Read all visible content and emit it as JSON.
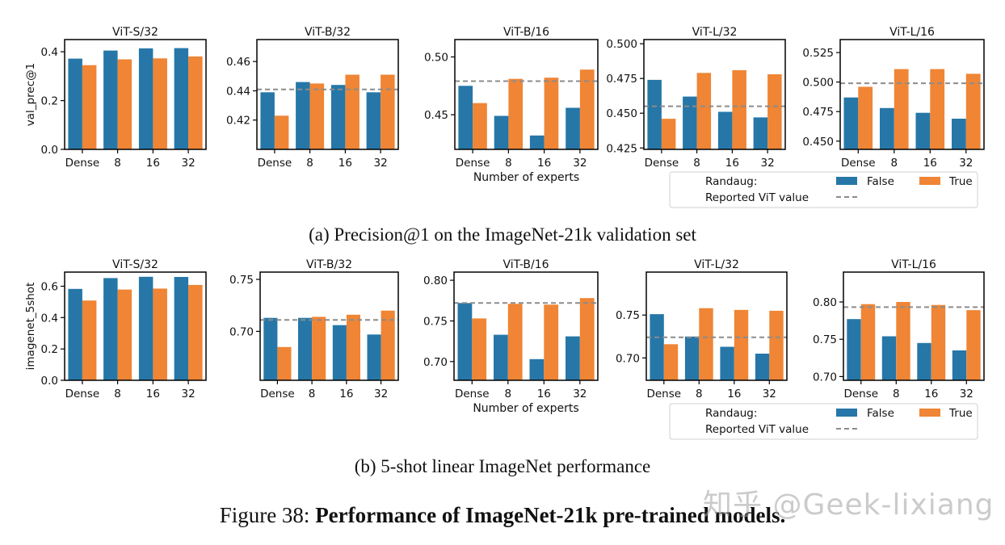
{
  "colors": {
    "false": "#2677a8",
    "true": "#ef8535",
    "ref": "#8c8c8c",
    "axis": "#000000"
  },
  "captions": {
    "a": "(a) Precision@1 on the ImageNet-21k validation set",
    "b": "(b) 5-shot linear ImageNet performance",
    "figure_label": "Figure 38: ",
    "figure_title": "Performance of ImageNet-21k pre-trained models."
  },
  "watermark": "知乎 @Geek-lixiang",
  "legend": {
    "title": "Randaug:",
    "false_label": "False",
    "true_label": "True",
    "ref_label": "Reported ViT value"
  },
  "chart_data": [
    {
      "row": "a",
      "type": "bar",
      "title": "ViT-S/32",
      "categories": [
        "Dense",
        "8",
        "16",
        "32"
      ],
      "ylabel": "val_prec@1",
      "xlabel": "",
      "ylim": [
        0,
        0.45
      ],
      "yticks": [
        0.0,
        0.2,
        0.4
      ],
      "ytick_labels": [
        "0.0",
        "0.2",
        "0.4"
      ],
      "series": [
        {
          "name": "False",
          "values": [
            0.372,
            0.405,
            0.414,
            0.415
          ]
        },
        {
          "name": "True",
          "values": [
            0.345,
            0.369,
            0.373,
            0.381
          ]
        }
      ],
      "reference": null
    },
    {
      "row": "a",
      "type": "bar",
      "title": "ViT-B/32",
      "categories": [
        "Dense",
        "8",
        "16",
        "32"
      ],
      "ylabel": "",
      "xlabel": "",
      "ylim": [
        0.4,
        0.475
      ],
      "yticks": [
        0.42,
        0.44,
        0.46
      ],
      "ytick_labels": [
        "0.42",
        "0.44",
        "0.46"
      ],
      "series": [
        {
          "name": "False",
          "values": [
            0.439,
            0.446,
            0.444,
            0.439
          ]
        },
        {
          "name": "True",
          "values": [
            0.423,
            0.445,
            0.451,
            0.451
          ]
        }
      ],
      "reference": 0.441
    },
    {
      "row": "a",
      "type": "bar",
      "title": "ViT-B/16",
      "categories": [
        "Dense",
        "8",
        "16",
        "32"
      ],
      "ylabel": "",
      "xlabel": "Number of experts",
      "ylim": [
        0.42,
        0.515
      ],
      "yticks": [
        0.45,
        0.5
      ],
      "ytick_labels": [
        "0.45",
        "0.50"
      ],
      "series": [
        {
          "name": "False",
          "values": [
            0.475,
            0.449,
            0.432,
            0.456
          ]
        },
        {
          "name": "True",
          "values": [
            0.46,
            0.481,
            0.482,
            0.489
          ]
        }
      ],
      "reference": 0.479
    },
    {
      "row": "a",
      "type": "bar",
      "title": "ViT-L/32",
      "categories": [
        "Dense",
        "8",
        "16",
        "32"
      ],
      "ylabel": "",
      "xlabel": "",
      "ylim": [
        0.424,
        0.503
      ],
      "yticks": [
        0.425,
        0.45,
        0.475,
        0.5
      ],
      "ytick_labels": [
        "0.425",
        "0.450",
        "0.475",
        "0.500"
      ],
      "series": [
        {
          "name": "False",
          "values": [
            0.474,
            0.462,
            0.451,
            0.447
          ]
        },
        {
          "name": "True",
          "values": [
            0.446,
            0.479,
            0.481,
            0.478
          ]
        }
      ],
      "reference": 0.455
    },
    {
      "row": "a",
      "type": "bar",
      "title": "ViT-L/16",
      "categories": [
        "Dense",
        "8",
        "16",
        "32"
      ],
      "ylabel": "",
      "xlabel": "",
      "ylim": [
        0.443,
        0.536
      ],
      "yticks": [
        0.45,
        0.475,
        0.5,
        0.525
      ],
      "ytick_labels": [
        "0.450",
        "0.475",
        "0.500",
        "0.525"
      ],
      "series": [
        {
          "name": "False",
          "values": [
            0.487,
            0.478,
            0.474,
            0.469
          ]
        },
        {
          "name": "True",
          "values": [
            0.496,
            0.511,
            0.511,
            0.507
          ]
        }
      ],
      "reference": 0.499
    },
    {
      "row": "b",
      "type": "bar",
      "title": "ViT-S/32",
      "categories": [
        "Dense",
        "8",
        "16",
        "32"
      ],
      "ylabel": "imagenet_5shot",
      "xlabel": "",
      "ylim": [
        0,
        0.69
      ],
      "yticks": [
        0.0,
        0.2,
        0.4,
        0.6
      ],
      "ytick_labels": [
        "0.0",
        "0.2",
        "0.4",
        "0.6"
      ],
      "series": [
        {
          "name": "False",
          "values": [
            0.583,
            0.652,
            0.66,
            0.659
          ]
        },
        {
          "name": "True",
          "values": [
            0.509,
            0.579,
            0.585,
            0.608
          ]
        }
      ],
      "reference": null
    },
    {
      "row": "b",
      "type": "bar",
      "title": "ViT-B/32",
      "categories": [
        "Dense",
        "8",
        "16",
        "32"
      ],
      "ylabel": "",
      "xlabel": "",
      "ylim": [
        0.653,
        0.757
      ],
      "yticks": [
        0.7,
        0.75
      ],
      "ytick_labels": [
        "0.70",
        "0.75"
      ],
      "series": [
        {
          "name": "False",
          "values": [
            0.713,
            0.713,
            0.706,
            0.697
          ]
        },
        {
          "name": "True",
          "values": [
            0.685,
            0.714,
            0.716,
            0.72
          ]
        }
      ],
      "reference": 0.711
    },
    {
      "row": "b",
      "type": "bar",
      "title": "ViT-B/16",
      "categories": [
        "Dense",
        "8",
        "16",
        "32"
      ],
      "ylabel": "",
      "xlabel": "Number of experts",
      "ylim": [
        0.677,
        0.81
      ],
      "yticks": [
        0.7,
        0.75,
        0.8
      ],
      "ytick_labels": [
        "0.70",
        "0.75",
        "0.80"
      ],
      "series": [
        {
          "name": "False",
          "values": [
            0.772,
            0.733,
            0.703,
            0.731
          ]
        },
        {
          "name": "True",
          "values": [
            0.753,
            0.771,
            0.77,
            0.778
          ]
        }
      ],
      "reference": 0.772
    },
    {
      "row": "b",
      "type": "bar",
      "title": "ViT-L/32",
      "categories": [
        "Dense",
        "8",
        "16",
        "32"
      ],
      "ylabel": "",
      "xlabel": "",
      "ylim": [
        0.674,
        0.8
      ],
      "yticks": [
        0.7,
        0.75
      ],
      "ytick_labels": [
        "0.70",
        "0.75"
      ],
      "series": [
        {
          "name": "False",
          "values": [
            0.751,
            0.725,
            0.713,
            0.705
          ]
        },
        {
          "name": "True",
          "values": [
            0.716,
            0.758,
            0.756,
            0.755
          ]
        }
      ],
      "reference": 0.724
    },
    {
      "row": "b",
      "type": "bar",
      "title": "ViT-L/16",
      "categories": [
        "Dense",
        "8",
        "16",
        "32"
      ],
      "ylabel": "",
      "xlabel": "",
      "ylim": [
        0.695,
        0.84
      ],
      "yticks": [
        0.7,
        0.75,
        0.8
      ],
      "ytick_labels": [
        "0.70",
        "0.75",
        "0.80"
      ],
      "series": [
        {
          "name": "False",
          "values": [
            0.777,
            0.754,
            0.745,
            0.735
          ]
        },
        {
          "name": "True",
          "values": [
            0.797,
            0.8,
            0.796,
            0.789
          ]
        }
      ],
      "reference": 0.793
    }
  ]
}
